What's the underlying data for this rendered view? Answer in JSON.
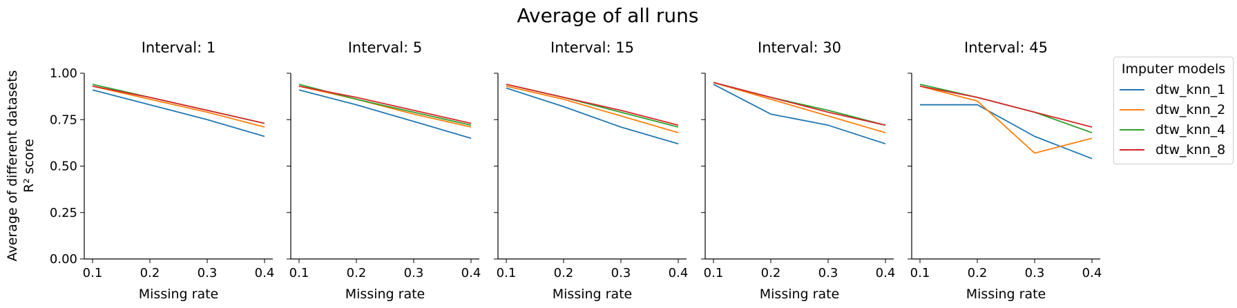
{
  "figure_title": "Average of all runs",
  "ylabel_line1": "Average of different datasets",
  "ylabel_line2": "R² score",
  "legend": {
    "title": "Imputer models",
    "entries": [
      {
        "name": "dtw_knn_1",
        "color": "#1f77b4"
      },
      {
        "name": "dtw_knn_2",
        "color": "#ff7f0e"
      },
      {
        "name": "dtw_knn_4",
        "color": "#2ca02c"
      },
      {
        "name": "dtw_knn_8",
        "color": "#d62728"
      }
    ]
  },
  "chart_data": [
    {
      "type": "line",
      "title": "Interval: 1",
      "xlabel": "Missing rate",
      "ylabel": "Average of different datasets R² score",
      "x": [
        0.1,
        0.2,
        0.3,
        0.4
      ],
      "xticks": [
        "0.1",
        "0.2",
        "0.3",
        "0.4"
      ],
      "ylim": [
        0.0,
        1.0
      ],
      "yticks": [
        "0.00",
        "0.25",
        "0.50",
        "0.75",
        "1.00"
      ],
      "series": [
        {
          "name": "dtw_knn_1",
          "values": [
            0.91,
            0.83,
            0.75,
            0.66
          ]
        },
        {
          "name": "dtw_knn_2",
          "values": [
            0.93,
            0.86,
            0.79,
            0.71
          ]
        },
        {
          "name": "dtw_knn_4",
          "values": [
            0.94,
            0.87,
            0.8,
            0.73
          ]
        },
        {
          "name": "dtw_knn_8",
          "values": [
            0.93,
            0.87,
            0.8,
            0.73
          ]
        }
      ]
    },
    {
      "type": "line",
      "title": "Interval: 5",
      "xlabel": "Missing rate",
      "x": [
        0.1,
        0.2,
        0.3,
        0.4
      ],
      "xticks": [
        "0.1",
        "0.2",
        "0.3",
        "0.4"
      ],
      "ylim": [
        0.0,
        1.0
      ],
      "series": [
        {
          "name": "dtw_knn_1",
          "values": [
            0.91,
            0.83,
            0.74,
            0.65
          ]
        },
        {
          "name": "dtw_knn_2",
          "values": [
            0.93,
            0.86,
            0.78,
            0.71
          ]
        },
        {
          "name": "dtw_knn_4",
          "values": [
            0.94,
            0.86,
            0.79,
            0.72
          ]
        },
        {
          "name": "dtw_knn_8",
          "values": [
            0.93,
            0.87,
            0.8,
            0.73
          ]
        }
      ]
    },
    {
      "type": "line",
      "title": "Interval: 15",
      "xlabel": "Missing rate",
      "x": [
        0.1,
        0.2,
        0.3,
        0.4
      ],
      "xticks": [
        "0.1",
        "0.2",
        "0.3",
        "0.4"
      ],
      "ylim": [
        0.0,
        1.0
      ],
      "series": [
        {
          "name": "dtw_knn_1",
          "values": [
            0.92,
            0.82,
            0.71,
            0.62
          ]
        },
        {
          "name": "dtw_knn_2",
          "values": [
            0.93,
            0.86,
            0.77,
            0.68
          ]
        },
        {
          "name": "dtw_knn_4",
          "values": [
            0.94,
            0.87,
            0.79,
            0.71
          ]
        },
        {
          "name": "dtw_knn_8",
          "values": [
            0.94,
            0.87,
            0.8,
            0.72
          ]
        }
      ]
    },
    {
      "type": "line",
      "title": "Interval: 30",
      "xlabel": "Missing rate",
      "x": [
        0.1,
        0.2,
        0.3,
        0.4
      ],
      "xticks": [
        "0.1",
        "0.2",
        "0.3",
        "0.4"
      ],
      "ylim": [
        0.0,
        1.0
      ],
      "series": [
        {
          "name": "dtw_knn_1",
          "values": [
            0.94,
            0.78,
            0.72,
            0.62
          ]
        },
        {
          "name": "dtw_knn_2",
          "values": [
            0.95,
            0.86,
            0.77,
            0.68
          ]
        },
        {
          "name": "dtw_knn_4",
          "values": [
            0.95,
            0.87,
            0.8,
            0.72
          ]
        },
        {
          "name": "dtw_knn_8",
          "values": [
            0.95,
            0.87,
            0.79,
            0.72
          ]
        }
      ]
    },
    {
      "type": "line",
      "title": "Interval: 45",
      "xlabel": "Missing rate",
      "x": [
        0.1,
        0.2,
        0.3,
        0.4
      ],
      "xticks": [
        "0.1",
        "0.2",
        "0.3",
        "0.4"
      ],
      "ylim": [
        0.0,
        1.0
      ],
      "series": [
        {
          "name": "dtw_knn_1",
          "values": [
            0.83,
            0.83,
            0.66,
            0.54
          ]
        },
        {
          "name": "dtw_knn_2",
          "values": [
            0.93,
            0.85,
            0.57,
            0.65
          ]
        },
        {
          "name": "dtw_knn_4",
          "values": [
            0.94,
            0.87,
            0.79,
            0.68
          ]
        },
        {
          "name": "dtw_knn_8",
          "values": [
            0.93,
            0.87,
            0.79,
            0.71
          ]
        }
      ]
    }
  ]
}
